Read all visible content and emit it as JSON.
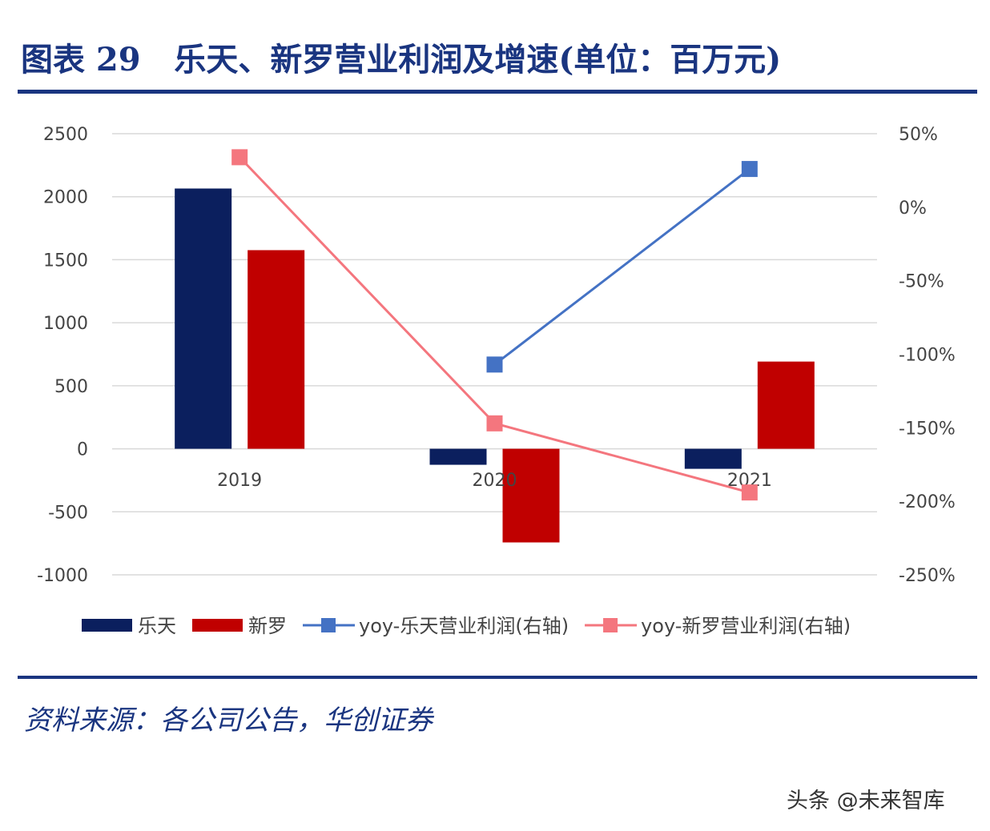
{
  "title": "图表 29   乐天、新罗营业利润及增速(单位：百万元)",
  "source": "资料来源：各公司公告，华创证券",
  "watermark": "头条 @未来智库",
  "chart_data": {
    "type": "bar+line",
    "categories": [
      "2019",
      "2020",
      "2021"
    ],
    "left_axis": {
      "ylim": [
        -1000,
        2500
      ],
      "ticks": [
        "2500",
        "2000",
        "1500",
        "1000",
        "500",
        "0",
        "-500",
        "-1000"
      ],
      "values": [
        2500,
        2000,
        1500,
        1000,
        500,
        0,
        -500,
        -1000
      ]
    },
    "right_axis": {
      "ylim": [
        -250,
        50
      ],
      "ticks": [
        "50%",
        "0%",
        "-50%",
        "-100%",
        "-150%",
        "-200%",
        "-250%"
      ],
      "values": [
        50,
        0,
        -50,
        -100,
        -150,
        -200,
        -250
      ]
    },
    "grid": true,
    "legend_placement": "bottom",
    "series": [
      {
        "name": "乐天",
        "type": "bar",
        "axis": "left",
        "color": "#0b1f5e",
        "values": [
          2065,
          -127,
          -159
        ]
      },
      {
        "name": "新罗",
        "type": "bar",
        "axis": "left",
        "color": "#c00000",
        "values": [
          1576,
          -743,
          692
        ]
      },
      {
        "name": "yoy-乐天营业利润(右轴)",
        "type": "line",
        "axis": "right",
        "color": "#4472c4",
        "values": [
          null,
          -107,
          26
        ]
      },
      {
        "name": "yoy-新罗营业利润(右轴)",
        "type": "line",
        "axis": "right",
        "color": "#f4767e",
        "values": [
          34,
          -147,
          -194
        ]
      }
    ]
  }
}
